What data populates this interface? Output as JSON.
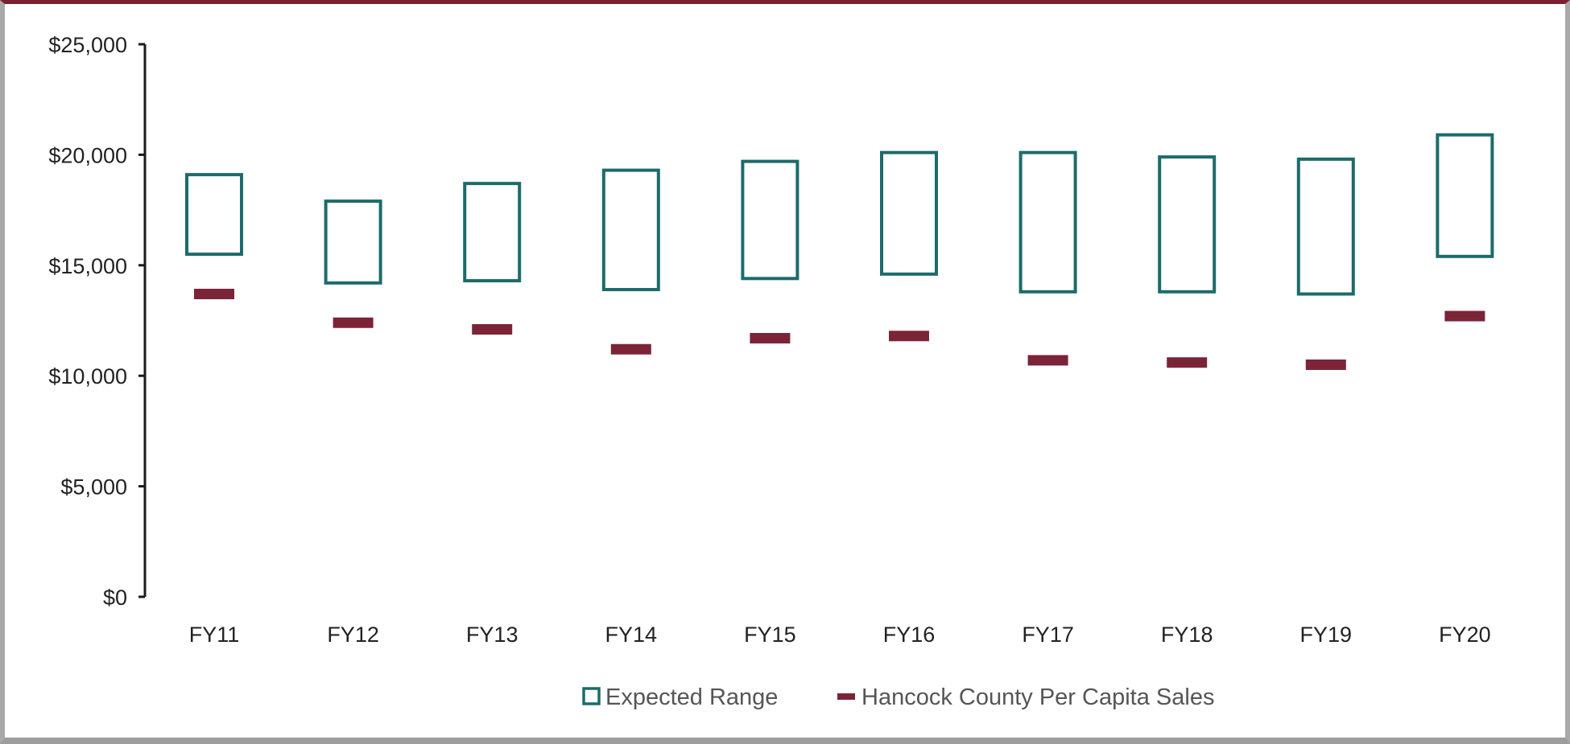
{
  "chart_data": {
    "type": "range-with-markers",
    "title": "",
    "xlabel": "",
    "ylabel": "",
    "categories": [
      "FY11",
      "FY12",
      "FY13",
      "FY14",
      "FY15",
      "FY16",
      "FY17",
      "FY18",
      "FY19",
      "FY20"
    ],
    "series": [
      {
        "name": "Expected Range",
        "low": [
          15500,
          14200,
          14300,
          13900,
          14400,
          14600,
          13800,
          13800,
          13700,
          15400
        ],
        "high": [
          19100,
          17900,
          18700,
          19300,
          19700,
          20100,
          20100,
          19900,
          19800,
          20900
        ],
        "color": "#1d6b6b"
      },
      {
        "name": "Hancock County Per Capita Sales",
        "values": [
          13700,
          12400,
          12100,
          11200,
          11700,
          11800,
          10700,
          10600,
          10500,
          12700
        ],
        "color": "#7b2438"
      }
    ],
    "ylim": [
      0,
      25000
    ],
    "yticks": [
      0,
      5000,
      10000,
      15000,
      20000,
      25000
    ],
    "ytick_labels": [
      "$0",
      "$5,000",
      "$10,000",
      "$15,000",
      "$20,000",
      "$25,000"
    ],
    "grid": false,
    "legend_position": "bottom"
  }
}
